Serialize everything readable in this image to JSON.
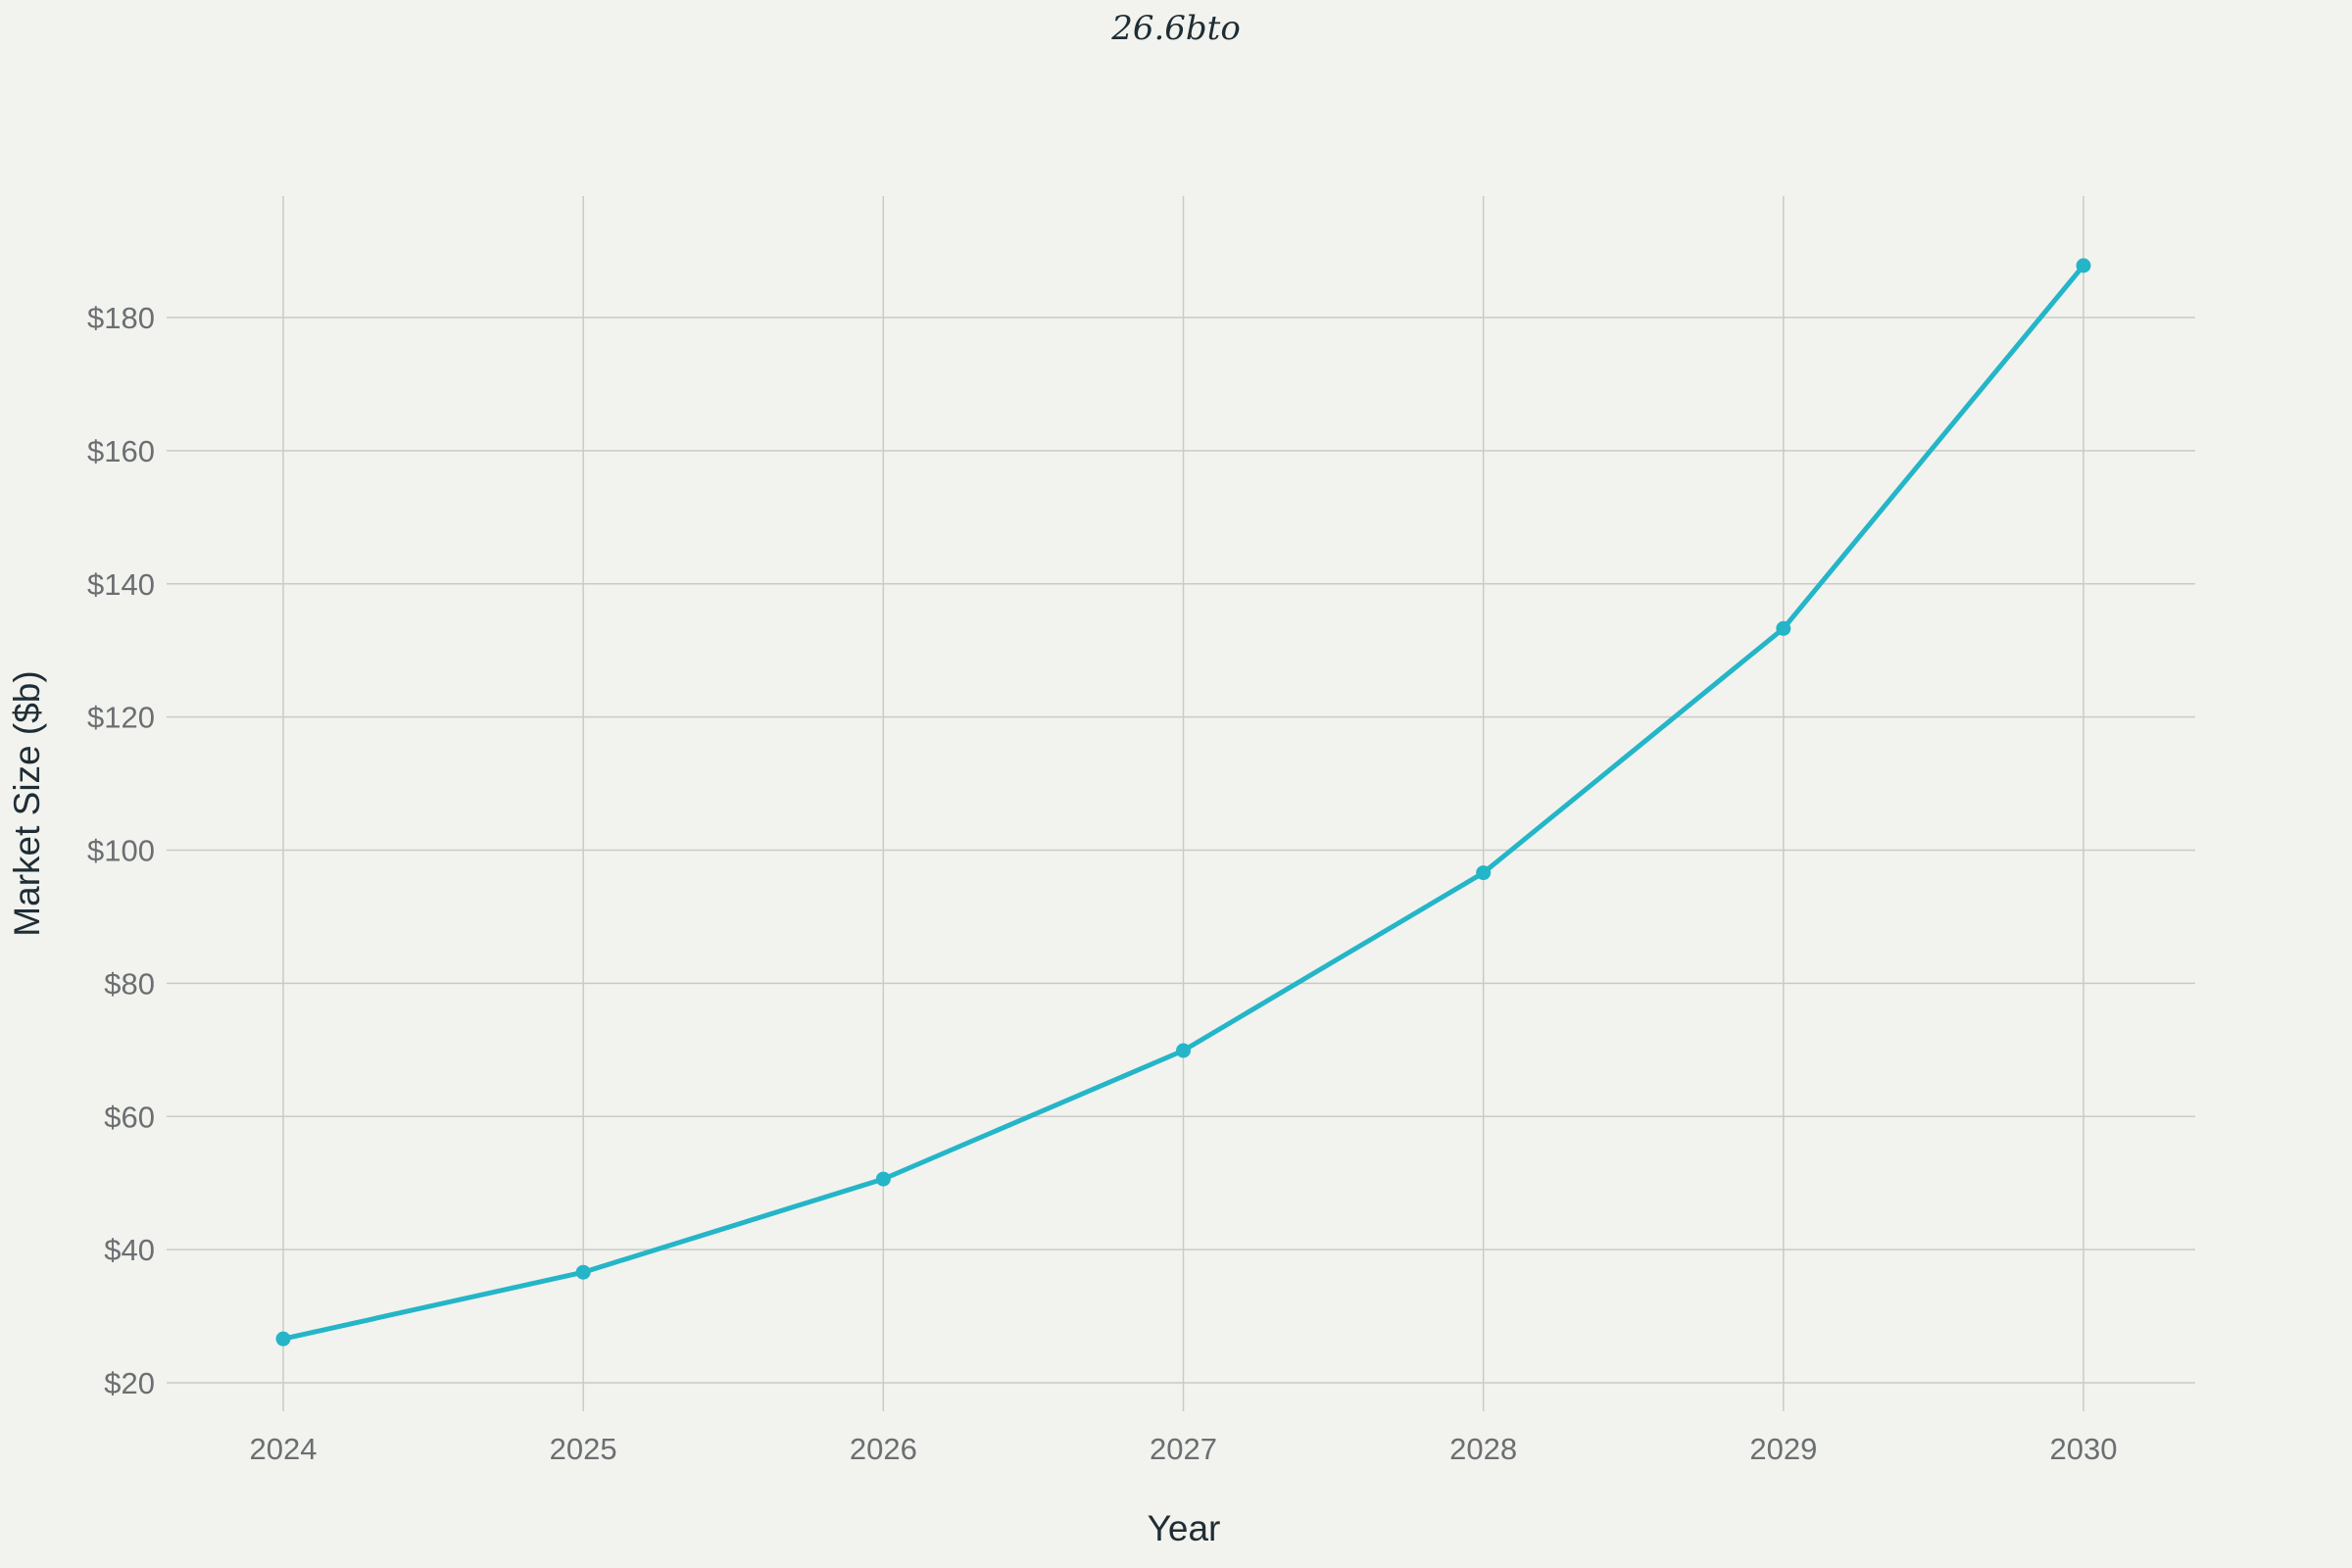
{
  "chart_data": {
    "type": "line",
    "title": "26.6bto",
    "xlabel": "Year",
    "ylabel": "Market Size ($b)",
    "x": [
      "2024",
      "2025",
      "2026",
      "2027",
      "2028",
      "2029",
      "2030"
    ],
    "series": [
      {
        "values": [
          26.6,
          36.6,
          50.6,
          69.9,
          96.6,
          133.3,
          187.8
        ],
        "color": "#25b5c8"
      }
    ],
    "ylim": [
      16,
      198
    ],
    "yticks": [
      20,
      40,
      60,
      80,
      100,
      120,
      140,
      160,
      180
    ],
    "ytick_labels": [
      "$20",
      "$40",
      "$60",
      "$80",
      "$100",
      "$120",
      "$140",
      "$160",
      "$180"
    ],
    "grid": true,
    "legend": "none"
  },
  "colors": {
    "background": "#f2f3ee",
    "line": "#25b5c8",
    "grid": "#c9cbc6"
  }
}
